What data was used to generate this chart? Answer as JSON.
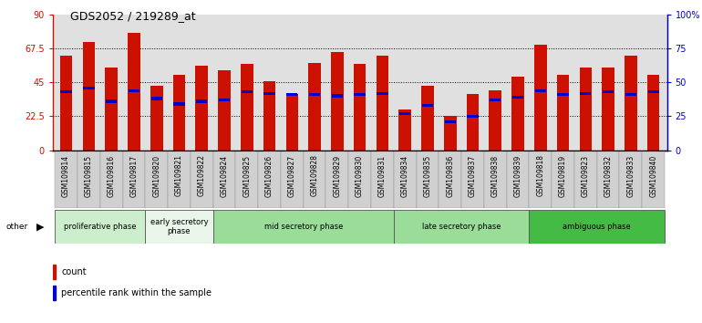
{
  "title": "GDS2052 / 219289_at",
  "samples": [
    "GSM109814",
    "GSM109815",
    "GSM109816",
    "GSM109817",
    "GSM109820",
    "GSM109821",
    "GSM109822",
    "GSM109824",
    "GSM109825",
    "GSM109826",
    "GSM109827",
    "GSM109828",
    "GSM109829",
    "GSM109830",
    "GSM109831",
    "GSM109834",
    "GSM109835",
    "GSM109836",
    "GSM109837",
    "GSM109838",
    "GSM109839",
    "GSM109818",
    "GSM109819",
    "GSM109823",
    "GSM109832",
    "GSM109833",
    "GSM109840"
  ],
  "count_values": [
    63,
    72,
    55,
    78,
    43,
    50,
    56,
    53,
    57,
    46,
    37,
    58,
    65,
    57,
    63,
    27,
    43,
    23,
    37,
    40,
    49,
    70,
    50,
    55,
    55,
    63,
    50
  ],
  "percentile_values": [
    43,
    46,
    36,
    44,
    38,
    34,
    36,
    37,
    43,
    42,
    41,
    41,
    40,
    41,
    42,
    27,
    33,
    21,
    25,
    37,
    39,
    44,
    41,
    42,
    43,
    41,
    43
  ],
  "phases": [
    {
      "name": "proliferative phase",
      "start": 0,
      "end": 4,
      "color": "#cceecc"
    },
    {
      "name": "early secretory\nphase",
      "start": 4,
      "end": 7,
      "color": "#e8f5e8"
    },
    {
      "name": "mid secretory phase",
      "start": 7,
      "end": 15,
      "color": "#99dd99"
    },
    {
      "name": "late secretory phase",
      "start": 15,
      "end": 21,
      "color": "#99dd99"
    },
    {
      "name": "ambiguous phase",
      "start": 21,
      "end": 27,
      "color": "#44bb44"
    }
  ],
  "bar_color": "#cc1100",
  "pct_color": "#0000cc",
  "ylim_left": [
    0,
    90
  ],
  "ylim_right": [
    0,
    100
  ],
  "yticks_left": [
    0,
    22.5,
    45,
    67.5,
    90
  ],
  "yticks_right": [
    0,
    25,
    50,
    75,
    100
  ],
  "ytick_labels_left": [
    "0",
    "22.5",
    "45",
    "67.5",
    "90"
  ],
  "ytick_labels_right": [
    "0",
    "25",
    "50",
    "75",
    "100%"
  ],
  "ylabel_left_color": "#cc1100",
  "ylabel_right_color": "#0000cc",
  "background_color": "#ffffff",
  "plot_bg_color": "#e0e0e0",
  "xtick_bg_color": "#d0d0d0"
}
